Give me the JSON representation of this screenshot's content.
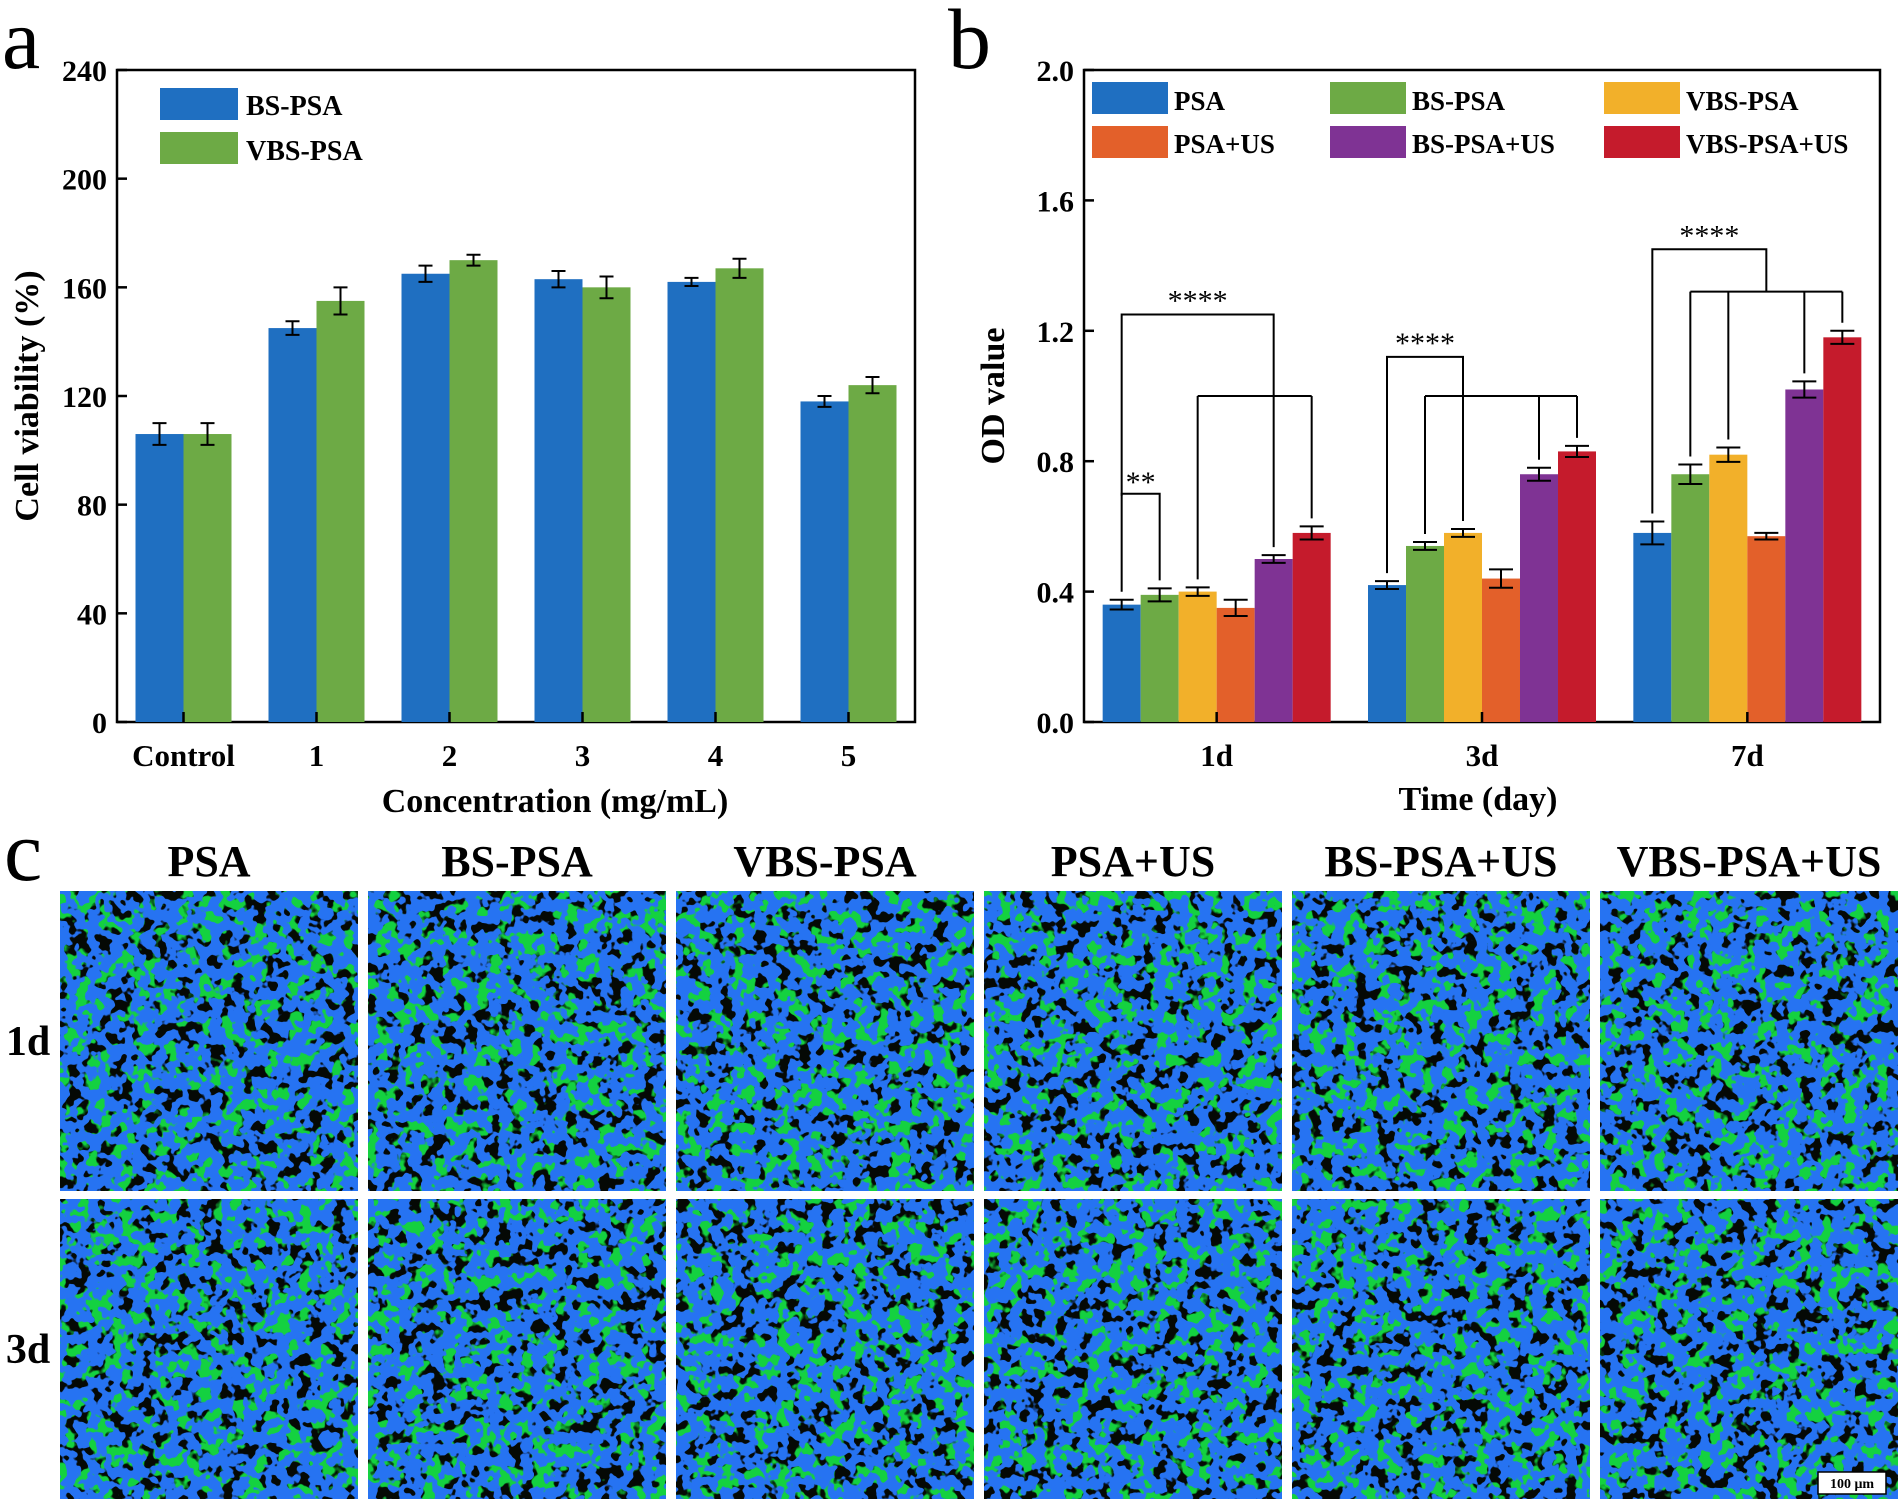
{
  "panel_labels": {
    "a": "a",
    "b": "b",
    "c": "c"
  },
  "colors": {
    "PSA": "#1f6fc1",
    "BS-PSA": "#6daa45",
    "VBS-PSA": "#f2b02a",
    "PSA+US": "#e3602a",
    "BS-PSA+US": "#7f3394",
    "VBS-PSA+US": "#c51b2c",
    "cell_green": "#22d44a",
    "nucleus_blue": "#2a6cf0"
  },
  "chart_data": [
    {
      "type": "bar",
      "panel": "a",
      "title": "",
      "xlabel": "Concentration (mg/mL)",
      "ylabel": "Cell viability (%)",
      "categories": [
        "Control",
        "1",
        "2",
        "3",
        "4",
        "5"
      ],
      "ylim": [
        0,
        240
      ],
      "yticks": [
        0,
        40,
        80,
        120,
        160,
        200,
        240
      ],
      "legend_position": "top-left",
      "series": [
        {
          "name": "BS-PSA",
          "color_key": "BS-PSA_a",
          "values": [
            106,
            145,
            165,
            163,
            162,
            118
          ],
          "errors": [
            4,
            2.5,
            3,
            3,
            1.5,
            2
          ]
        },
        {
          "name": "VBS-PSA",
          "color_key": "VBS-PSA_a",
          "values": [
            106,
            155,
            170,
            160,
            167,
            124
          ],
          "errors": [
            4,
            5,
            2,
            4,
            3.5,
            3
          ]
        }
      ]
    },
    {
      "type": "bar",
      "panel": "b",
      "title": "",
      "xlabel": "Time (day)",
      "ylabel": "OD value",
      "categories": [
        "1d",
        "3d",
        "7d"
      ],
      "ylim": [
        0,
        2.0
      ],
      "yticks": [
        "0.0",
        "0.4",
        "0.8",
        "1.2",
        "1.6",
        "2.0"
      ],
      "legend_position": "top",
      "series": [
        {
          "name": "PSA",
          "values": [
            0.36,
            0.42,
            0.58
          ],
          "errors": [
            0.015,
            0.012,
            0.035
          ]
        },
        {
          "name": "PSA+US",
          "values": [
            0.35,
            0.44,
            0.57
          ],
          "errors": [
            0.025,
            0.028,
            0.01
          ]
        },
        {
          "name": "BS-PSA",
          "values": [
            0.39,
            0.54,
            0.76
          ],
          "errors": [
            0.02,
            0.012,
            0.03
          ]
        },
        {
          "name": "BS-PSA+US",
          "values": [
            0.5,
            0.76,
            1.02
          ],
          "errors": [
            0.012,
            0.02,
            0.025
          ]
        },
        {
          "name": "VBS-PSA",
          "values": [
            0.4,
            0.58,
            0.82
          ],
          "errors": [
            0.013,
            0.012,
            0.022
          ]
        },
        {
          "name": "VBS-PSA+US",
          "values": [
            0.58,
            0.83,
            1.18
          ],
          "errors": [
            0.02,
            0.017,
            0.02
          ]
        }
      ],
      "annotations": [
        {
          "text": "**",
          "group": "1d"
        },
        {
          "text": "****",
          "group": "1d"
        },
        {
          "text": "****",
          "group": "3d"
        },
        {
          "text": "****",
          "group": "7d"
        }
      ]
    }
  ],
  "panel_c": {
    "columns": [
      "PSA",
      "BS-PSA",
      "VBS-PSA",
      "PSA+US",
      "BS-PSA+US",
      "VBS-PSA+US"
    ],
    "rows": [
      "1d",
      "3d"
    ],
    "scale_bar": "100 μm"
  }
}
